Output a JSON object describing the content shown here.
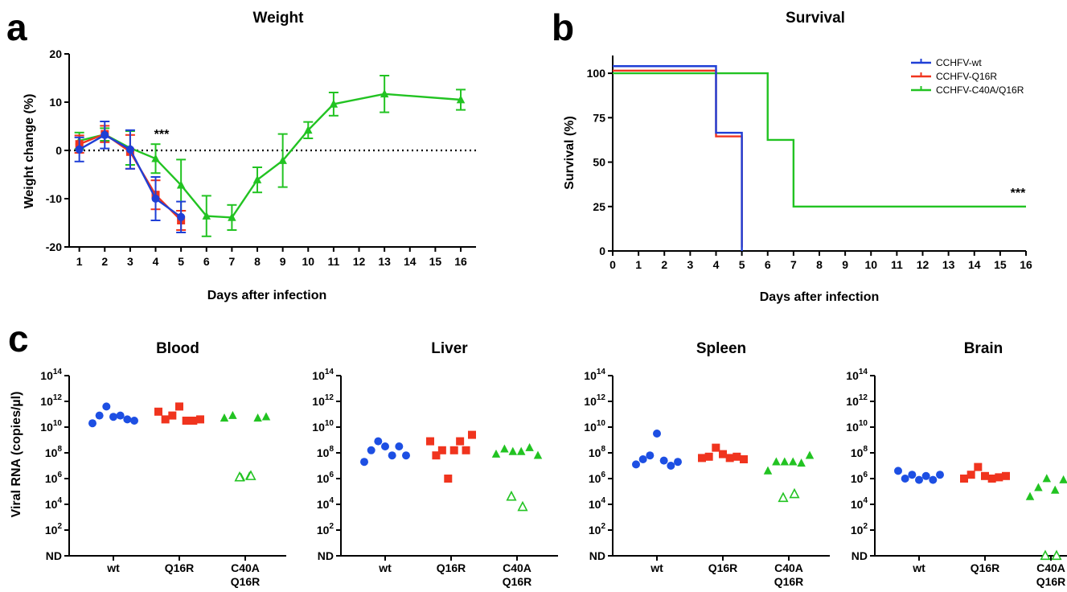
{
  "panels": {
    "a": "a",
    "b": "b",
    "c": "c"
  },
  "colors": {
    "wt": "#1f3fd6",
    "q16r": "#f0341e",
    "c40a": "#22c322",
    "wt_dot": "#1d4fe3"
  },
  "chart_data": [
    {
      "id": "weight",
      "type": "line",
      "title": "Weight",
      "xlabel": "Days after infection",
      "ylabel": "Weight change (%)",
      "xlim": [
        0.6,
        16.6
      ],
      "ylim": [
        -20,
        20
      ],
      "x_ticks": [
        "1",
        "2",
        "3",
        "4",
        "5",
        "6",
        "7",
        "8",
        "9",
        "10",
        "11",
        "12",
        "13",
        "14",
        "15",
        "16"
      ],
      "y_ticks": [
        "-20",
        "-10",
        "0",
        "10",
        "20"
      ],
      "zero_line": true,
      "annotation": "***",
      "series": [
        {
          "key": "wt",
          "marker": "circle",
          "points": [
            [
              1,
              0.2
            ],
            [
              2,
              3.2
            ],
            [
              3,
              0.2
            ],
            [
              4,
              -10
            ],
            [
              5,
              -13.8
            ]
          ],
          "err": [
            2.5,
            2.8,
            4.0,
            4.5,
            3.2
          ]
        },
        {
          "key": "q16r",
          "marker": "square",
          "points": [
            [
              1,
              1.3
            ],
            [
              2,
              3.4
            ],
            [
              3,
              -0.3
            ],
            [
              4,
              -9.2
            ],
            [
              5,
              -14.5
            ]
          ],
          "err": [
            1.8,
            1.7,
            3.5,
            3.0,
            2.0
          ]
        },
        {
          "key": "c40a",
          "marker": "triangle",
          "points": [
            [
              1,
              2.0
            ],
            [
              2,
              3.3
            ],
            [
              3,
              0.5
            ],
            [
              4,
              -1.7
            ],
            [
              5,
              -7.2
            ],
            [
              6,
              -13.6
            ],
            [
              7,
              -13.9
            ],
            [
              8,
              -6.1
            ],
            [
              9,
              -2.1
            ],
            [
              10,
              4.2
            ],
            [
              11,
              9.6
            ],
            [
              13,
              11.7
            ],
            [
              16,
              10.5
            ]
          ],
          "err": [
            1.7,
            1.3,
            3.5,
            3.0,
            5.3,
            4.2,
            2.6,
            2.6,
            5.5,
            1.7,
            2.4,
            3.8,
            2.1
          ]
        }
      ]
    },
    {
      "id": "survival",
      "type": "line",
      "title": "Survival",
      "xlabel": "Days after infection",
      "ylabel": "Survival (%)",
      "xlim": [
        0,
        16
      ],
      "ylim": [
        0,
        110
      ],
      "x_ticks": [
        "0",
        "1",
        "2",
        "3",
        "4",
        "5",
        "6",
        "7",
        "8",
        "9",
        "10",
        "11",
        "12",
        "13",
        "14",
        "15",
        "16"
      ],
      "y_ticks": [
        "0",
        "25",
        "50",
        "75",
        "100"
      ],
      "annotation": "***",
      "legend_position": "top-right",
      "series": [
        {
          "key": "wt",
          "name": "CCHFV-wt",
          "steps": [
            [
              0,
              104
            ],
            [
              4,
              104
            ],
            [
              4,
              66.5
            ],
            [
              5,
              66.5
            ],
            [
              5,
              0
            ]
          ]
        },
        {
          "key": "q16r",
          "name": "CCHFV-Q16R",
          "steps": [
            [
              0,
              101.5
            ],
            [
              4,
              101.5
            ],
            [
              4,
              64.5
            ],
            [
              5,
              64.5
            ],
            [
              5,
              2
            ]
          ]
        },
        {
          "key": "c40a",
          "name": "CCHFV-C40A/Q16R",
          "steps": [
            [
              0,
              100
            ],
            [
              6,
              100
            ],
            [
              6,
              62.5
            ],
            [
              7,
              62.5
            ],
            [
              7,
              25
            ],
            [
              16,
              25
            ]
          ]
        }
      ]
    },
    {
      "id": "viral-rna",
      "type": "scatter",
      "ylabel": "Viral RNA (copies/µl)",
      "y_scale": "log10",
      "y_ticks": [
        "ND",
        "10",
        "10",
        "10",
        "10",
        "10",
        "10",
        "10"
      ],
      "y_tick_exponents": [
        "",
        "2",
        "4",
        "6",
        "8",
        "10",
        "12",
        "14"
      ],
      "categories": [
        "wt",
        "Q16R",
        "C40A\nQ16R"
      ],
      "category_lines": [
        [
          "wt"
        ],
        [
          "Q16R"
        ],
        [
          "C40A",
          "Q16R"
        ]
      ],
      "note": "y values are log10 copies/µl; 0 = ND (not detected); open symbols hollow",
      "tissues": [
        {
          "name": "Blood",
          "groups": [
            {
              "key": "wt",
              "marker": "circle",
              "y": [
                10.3,
                10.9,
                11.6,
                10.8,
                10.9,
                10.6,
                10.5
              ]
            },
            {
              "key": "q16r",
              "marker": "square",
              "y": [
                11.2,
                10.6,
                10.9,
                11.6,
                10.5,
                10.5,
                10.6
              ]
            },
            {
              "key": "c40a",
              "marker": "triangle",
              "y": [
                10.7,
                10.9,
                6.1,
                6.2,
                10.7,
                10.8
              ]
            },
            {
              "key": "c40a",
              "marker": "triangle-open",
              "y": [
                6.1,
                6.2
              ]
            }
          ]
        },
        {
          "name": "Liver",
          "groups": [
            {
              "key": "wt",
              "marker": "circle",
              "y": [
                7.3,
                8.2,
                8.9,
                8.5,
                7.8,
                8.5,
                7.8
              ]
            },
            {
              "key": "q16r",
              "marker": "square",
              "y": [
                8.9,
                7.8,
                8.2,
                6.0,
                8.2,
                8.9,
                8.2,
                9.4
              ]
            },
            {
              "key": "c40a",
              "marker": "triangle",
              "y": [
                7.9,
                8.3,
                8.1,
                8.1,
                8.4,
                7.8
              ]
            },
            {
              "key": "c40a",
              "marker": "triangle-open",
              "y": [
                4.6,
                3.8
              ]
            }
          ]
        },
        {
          "name": "Spleen",
          "groups": [
            {
              "key": "wt",
              "marker": "circle",
              "y": [
                7.1,
                7.5,
                7.8,
                9.5,
                7.4,
                7.0,
                7.3
              ]
            },
            {
              "key": "q16r",
              "marker": "square",
              "y": [
                7.6,
                7.7,
                8.4,
                7.9,
                7.6,
                7.7,
                7.5
              ]
            },
            {
              "key": "c40a",
              "marker": "triangle",
              "y": [
                6.6,
                7.3,
                7.3,
                7.3,
                7.2,
                7.8
              ]
            },
            {
              "key": "c40a",
              "marker": "triangle-open",
              "y": [
                4.5,
                4.8
              ]
            }
          ]
        },
        {
          "name": "Brain",
          "groups": [
            {
              "key": "wt",
              "marker": "circle",
              "y": [
                6.6,
                6.0,
                6.3,
                5.9,
                6.2,
                5.9,
                6.3
              ]
            },
            {
              "key": "q16r",
              "marker": "square",
              "y": [
                6.0,
                6.3,
                6.9,
                6.2,
                6.0,
                6.1,
                6.2
              ]
            },
            {
              "key": "c40a",
              "marker": "triangle",
              "y": [
                4.6,
                5.3,
                6.0,
                5.1,
                5.9,
                5.0
              ]
            },
            {
              "key": "c40a",
              "marker": "triangle-open",
              "y": [
                0,
                0
              ]
            }
          ]
        }
      ]
    }
  ]
}
